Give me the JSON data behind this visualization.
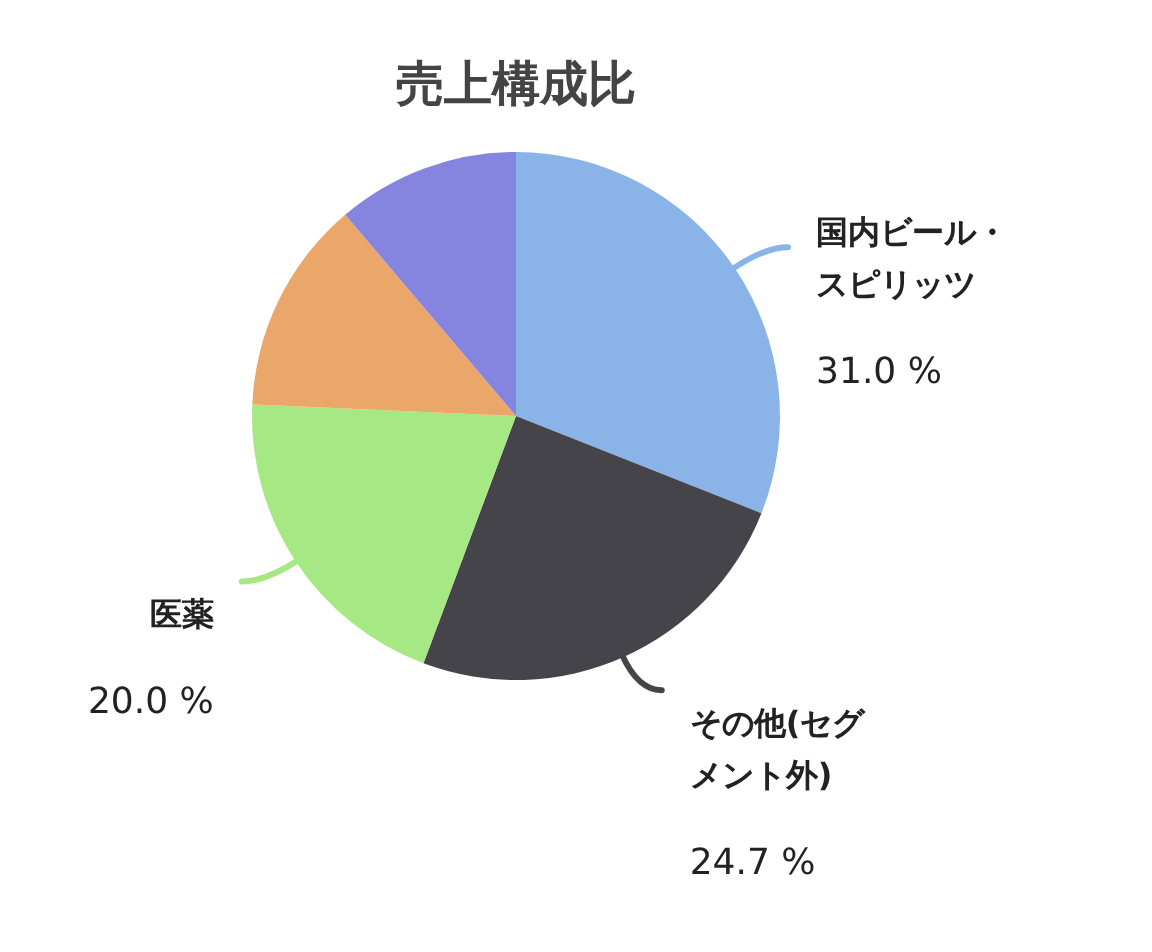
{
  "chart_data": {
    "type": "pie",
    "title": "売上構成比",
    "categories": [
      "国内ビール・スピリッツ",
      "その他(セグメント外)",
      "医薬",
      null,
      null
    ],
    "values": [
      31.0,
      24.7,
      20.0,
      13.1,
      11.2
    ],
    "colors": [
      "#8ab4e8",
      "#45444a",
      "#a6e884",
      "#eba66a",
      "#8585e0"
    ],
    "value_labels": [
      "31.0 %",
      "24.7 %",
      "20.0 %",
      null,
      null
    ]
  }
}
